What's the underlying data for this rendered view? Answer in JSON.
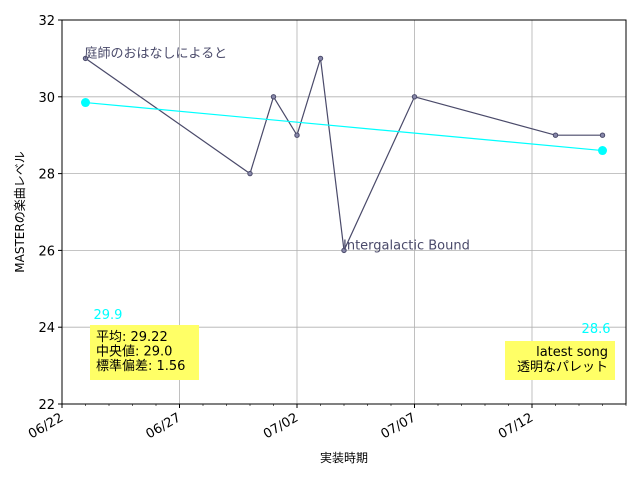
{
  "chart_data": {
    "type": "line",
    "xlabel": "実装時期",
    "ylabel": "MASTERの楽曲レベル",
    "ylim": [
      22,
      32
    ],
    "xlim": [
      "2023-06-22",
      "2023-07-16"
    ],
    "yticks": [
      22,
      24,
      26,
      28,
      30,
      32
    ],
    "xticks": [
      {
        "date": "2023-06-22",
        "label": "06/22"
      },
      {
        "date": "2023-06-27",
        "label": "06/27"
      },
      {
        "date": "2023-07-02",
        "label": "07/02"
      },
      {
        "date": "2023-07-07",
        "label": "07/07"
      },
      {
        "date": "2023-07-12",
        "label": "07/12"
      }
    ],
    "grid": true,
    "series": [
      {
        "color": "#4a4a6a",
        "points": [
          {
            "x": "2023-06-23",
            "y": 31
          },
          {
            "x": "2023-06-30",
            "y": 28
          },
          {
            "x": "2023-07-01",
            "y": 30
          },
          {
            "x": "2023-07-02",
            "y": 29
          },
          {
            "x": "2023-07-03",
            "y": 31
          },
          {
            "x": "2023-07-04",
            "y": 26
          },
          {
            "x": "2023-07-07",
            "y": 30
          },
          {
            "x": "2023-07-13",
            "y": 29
          },
          {
            "x": "2023-07-15",
            "y": 29
          }
        ]
      },
      {
        "color": "#00ffff",
        "points": [
          {
            "x": "2023-06-23",
            "y": 29.85
          },
          {
            "x": "2023-07-15",
            "y": 28.6
          }
        ]
      }
    ],
    "annotations": [
      {
        "text": "庭師のおはなしによると",
        "x": "2023-06-23",
        "y": 31,
        "color": "#4a4a6a"
      },
      {
        "text": "Intergalactic Bound",
        "x": "2023-07-04",
        "y": 26,
        "color": "#4a4a6a"
      }
    ],
    "trend_labels": [
      {
        "text": "29.9",
        "color": "#00ffff"
      },
      {
        "text": "28.6",
        "color": "#00ffff"
      }
    ],
    "stats_box": {
      "lines": [
        "平均: 29.22",
        "中央値: 29.0",
        "標準偏差:  1.56"
      ],
      "background": "#ffff66"
    },
    "legend_box": {
      "lines": [
        "latest song",
        "透明なパレット"
      ],
      "background": "#ffff66",
      "placement": "bottom-right"
    }
  }
}
